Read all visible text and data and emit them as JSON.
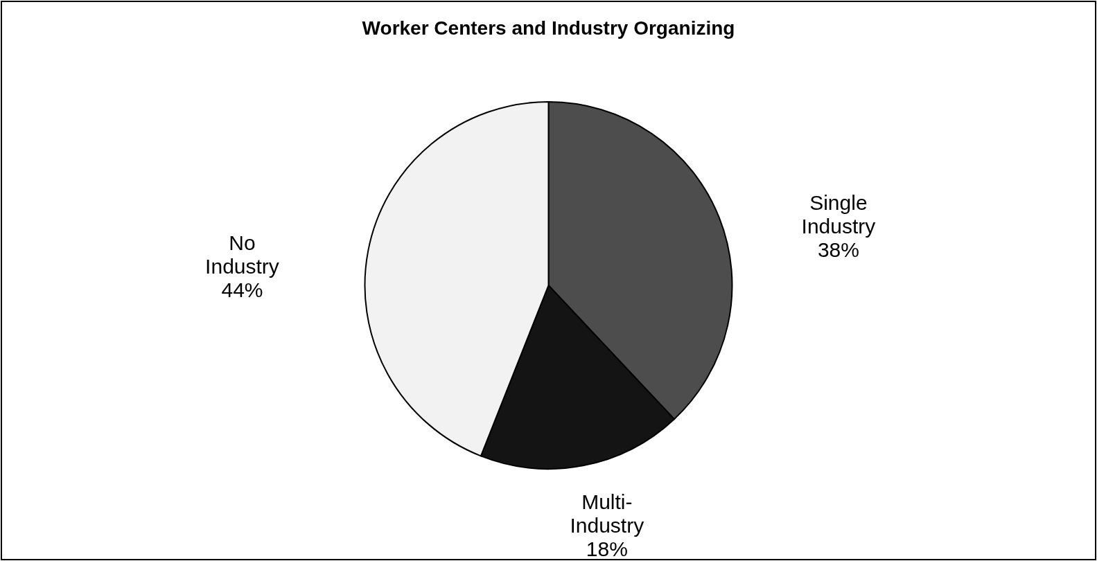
{
  "chart_data": {
    "type": "pie",
    "title": "Worker Centers and Industry Organizing",
    "categories": [
      "Single Industry",
      "Multi-Industry",
      "No Industry"
    ],
    "values": [
      38,
      18,
      44
    ],
    "colors": [
      "#4d4d4d",
      "#141414",
      "#f2f2f2"
    ],
    "value_labels": [
      "38%",
      "18%",
      "44%"
    ]
  }
}
